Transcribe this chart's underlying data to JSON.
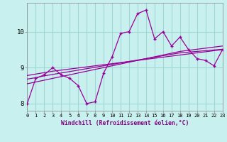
{
  "xlabel": "Windchill (Refroidissement éolien,°C)",
  "background_color": "#c8f0ee",
  "grid_color": "#a0d8d4",
  "line_color": "#990099",
  "x": [
    0,
    1,
    2,
    3,
    4,
    5,
    6,
    7,
    8,
    9,
    10,
    11,
    12,
    13,
    14,
    15,
    16,
    17,
    18,
    19,
    20,
    21,
    22,
    23
  ],
  "y_main": [
    8.0,
    8.7,
    8.8,
    9.0,
    8.8,
    8.7,
    8.5,
    8.0,
    8.05,
    8.85,
    9.3,
    9.95,
    10.0,
    10.5,
    10.6,
    9.8,
    10.0,
    9.6,
    9.85,
    9.5,
    9.25,
    9.2,
    9.05,
    9.5
  ],
  "y_line1": [
    8.78,
    8.82,
    8.86,
    8.9,
    8.93,
    8.96,
    8.99,
    9.02,
    9.05,
    9.08,
    9.11,
    9.14,
    9.17,
    9.2,
    9.23,
    9.26,
    9.29,
    9.32,
    9.35,
    9.38,
    9.41,
    9.44,
    9.47,
    9.5
  ],
  "y_line2": [
    8.68,
    8.72,
    8.77,
    8.81,
    8.85,
    8.89,
    8.93,
    8.97,
    9.01,
    9.05,
    9.09,
    9.13,
    9.17,
    9.21,
    9.25,
    9.29,
    9.33,
    9.37,
    9.41,
    9.43,
    9.45,
    9.47,
    9.49,
    9.51
  ],
  "y_line3": [
    8.55,
    8.6,
    8.65,
    8.7,
    8.75,
    8.8,
    8.85,
    8.9,
    8.95,
    9.0,
    9.05,
    9.1,
    9.15,
    9.2,
    9.25,
    9.3,
    9.35,
    9.4,
    9.45,
    9.48,
    9.51,
    9.54,
    9.57,
    9.6
  ],
  "ylim": [
    7.8,
    10.8
  ],
  "yticks": [
    8,
    9,
    10
  ],
  "xlim": [
    0,
    23
  ]
}
